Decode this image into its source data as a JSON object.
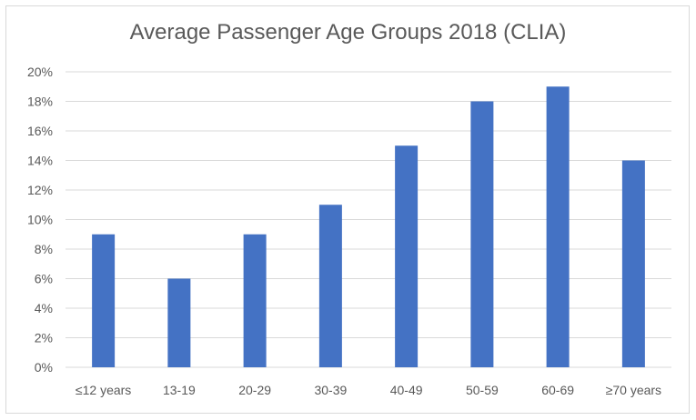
{
  "chart_data": {
    "type": "bar",
    "title": "Average Passenger Age Groups 2018 (CLIA)",
    "categories": [
      "≤12 years",
      "13-19",
      "20-29",
      "30-39",
      "40-49",
      "50-59",
      "60-69",
      "≥70 years"
    ],
    "values": [
      9,
      6,
      9,
      11,
      15,
      18,
      19,
      14
    ],
    "value_unit": "%",
    "ylim": [
      0,
      20
    ],
    "yticks": [
      "0%",
      "2%",
      "4%",
      "6%",
      "8%",
      "10%",
      "12%",
      "14%",
      "16%",
      "18%",
      "20%"
    ],
    "grid": true,
    "legend": "none",
    "bar_color": "#4472c4",
    "grid_color": "#d9d9d9"
  }
}
